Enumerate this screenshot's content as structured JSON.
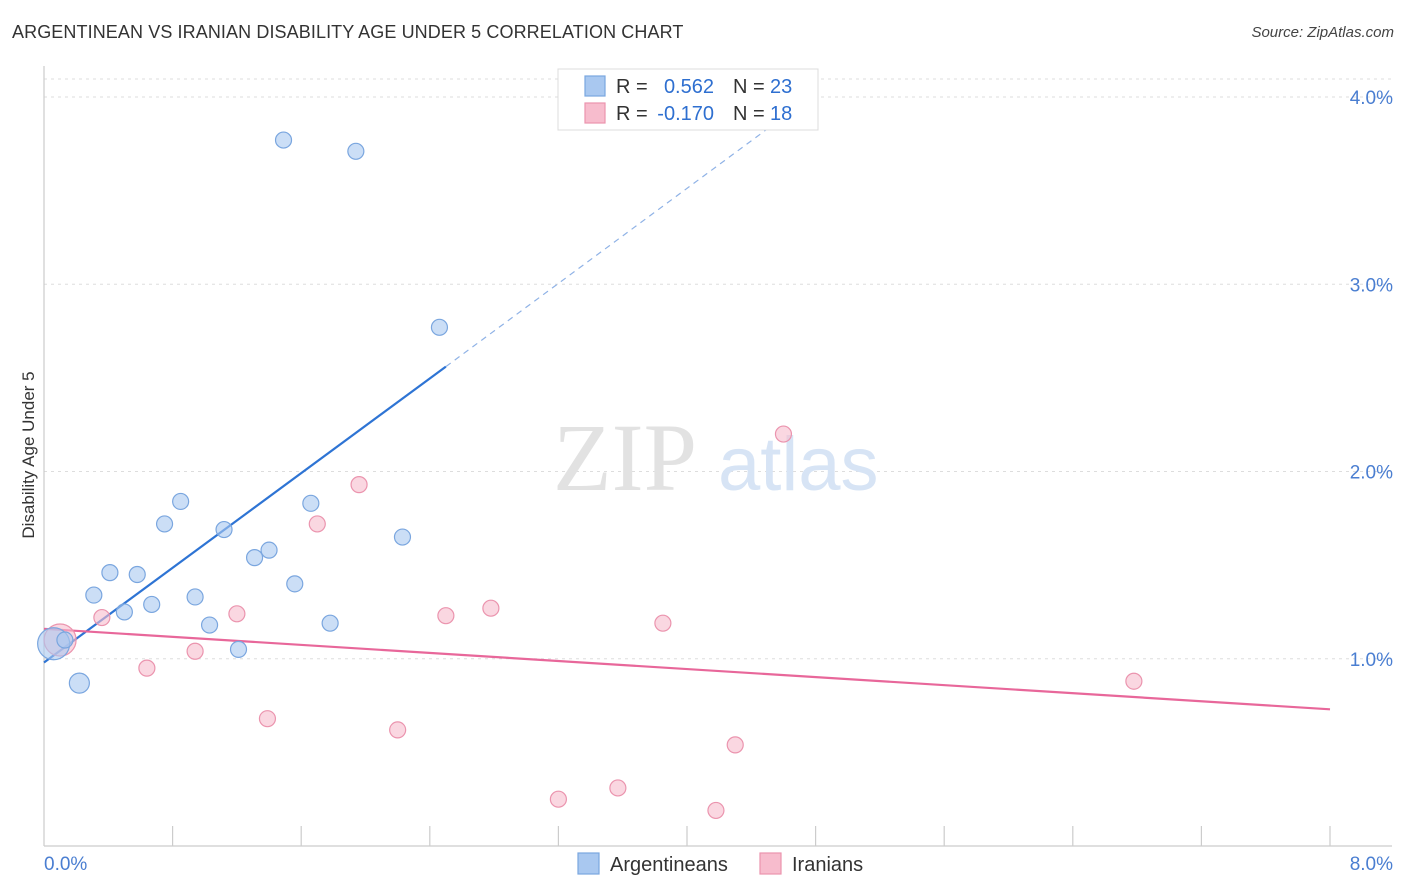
{
  "header": {
    "title": "ARGENTINEAN VS IRANIAN DISABILITY AGE UNDER 5 CORRELATION CHART",
    "source": "Source: ZipAtlas.com"
  },
  "watermark": {
    "part1": "ZIP",
    "part2": "atlas"
  },
  "colors": {
    "blue_fill": "#a9c8f0",
    "blue_stroke": "#7aa6df",
    "blue_line": "#2e74d4",
    "pink_fill": "#f7bccd",
    "pink_stroke": "#eb94ae",
    "pink_line": "#e8679a",
    "tick_text": "#4a7ed1",
    "grid": "#dddddd",
    "value_text": "#2e6fd0"
  },
  "chart_data": {
    "type": "scatter",
    "title": "ARGENTINEAN VS IRANIAN DISABILITY AGE UNDER 5 CORRELATION CHART",
    "xlabel": "",
    "ylabel": "Disability Age Under 5",
    "xlim": [
      0.0,
      8.0
    ],
    "ylim": [
      0.0,
      4.0
    ],
    "x_tick_labels": [
      "0.0%",
      "8.0%"
    ],
    "y_ticks": [
      {
        "value": 1.0,
        "label": "1.0%"
      },
      {
        "value": 2.0,
        "label": "2.0%"
      },
      {
        "value": 3.0,
        "label": "3.0%"
      },
      {
        "value": 4.0,
        "label": "4.0%"
      }
    ],
    "x_minor_ticks": [
      0.8,
      1.6,
      2.4,
      3.2,
      4.0,
      4.8,
      5.6,
      6.4,
      7.2,
      8.0
    ],
    "legend_top": [
      {
        "series": "Argentineans",
        "r_label": "R =",
        "r_value": "0.562",
        "n_label": "N =",
        "n_value": "23"
      },
      {
        "series": "Iranians",
        "r_label": "R =",
        "r_value": "-0.170",
        "n_label": "N =",
        "n_value": "18"
      }
    ],
    "legend_bottom": [
      "Argentineans",
      "Iranians"
    ],
    "series": [
      {
        "name": "Argentineans",
        "color": "#a9c8f0",
        "points": [
          {
            "x": 0.06,
            "y": 1.08,
            "size": "large"
          },
          {
            "x": 0.13,
            "y": 1.1,
            "size": "normal"
          },
          {
            "x": 0.22,
            "y": 0.87,
            "size": "medium"
          },
          {
            "x": 0.31,
            "y": 1.34,
            "size": "normal"
          },
          {
            "x": 0.41,
            "y": 1.46,
            "size": "normal"
          },
          {
            "x": 0.5,
            "y": 1.25,
            "size": "normal"
          },
          {
            "x": 0.58,
            "y": 1.45,
            "size": "normal"
          },
          {
            "x": 0.67,
            "y": 1.29,
            "size": "normal"
          },
          {
            "x": 0.75,
            "y": 1.72,
            "size": "normal"
          },
          {
            "x": 0.85,
            "y": 1.84,
            "size": "normal"
          },
          {
            "x": 0.94,
            "y": 1.33,
            "size": "normal"
          },
          {
            "x": 1.03,
            "y": 1.18,
            "size": "normal"
          },
          {
            "x": 1.12,
            "y": 1.69,
            "size": "normal"
          },
          {
            "x": 1.21,
            "y": 1.05,
            "size": "normal"
          },
          {
            "x": 1.31,
            "y": 1.54,
            "size": "normal"
          },
          {
            "x": 1.4,
            "y": 1.58,
            "size": "normal"
          },
          {
            "x": 1.49,
            "y": 3.77,
            "size": "normal"
          },
          {
            "x": 1.56,
            "y": 1.4,
            "size": "normal"
          },
          {
            "x": 1.66,
            "y": 1.83,
            "size": "normal"
          },
          {
            "x": 1.78,
            "y": 1.19,
            "size": "normal"
          },
          {
            "x": 1.94,
            "y": 3.71,
            "size": "normal"
          },
          {
            "x": 2.23,
            "y": 1.65,
            "size": "normal"
          },
          {
            "x": 2.46,
            "y": 2.77,
            "size": "normal"
          }
        ],
        "trend": {
          "x_start": 0.0,
          "y_start": 0.98,
          "x_solid_end": 2.5,
          "y_solid_end": 2.56,
          "x_dash_end": 4.8,
          "y_dash_end": 4.02
        }
      },
      {
        "name": "Iranians",
        "color": "#f7bccd",
        "points": [
          {
            "x": 0.1,
            "y": 1.1,
            "size": "large"
          },
          {
            "x": 0.36,
            "y": 1.22,
            "size": "normal"
          },
          {
            "x": 0.64,
            "y": 0.95,
            "size": "normal"
          },
          {
            "x": 0.94,
            "y": 1.04,
            "size": "normal"
          },
          {
            "x": 1.2,
            "y": 1.24,
            "size": "normal"
          },
          {
            "x": 1.39,
            "y": 0.68,
            "size": "normal"
          },
          {
            "x": 1.7,
            "y": 1.72,
            "size": "normal"
          },
          {
            "x": 1.96,
            "y": 1.93,
            "size": "normal"
          },
          {
            "x": 2.2,
            "y": 0.62,
            "size": "normal"
          },
          {
            "x": 2.5,
            "y": 1.23,
            "size": "normal"
          },
          {
            "x": 2.78,
            "y": 1.27,
            "size": "normal"
          },
          {
            "x": 3.2,
            "y": 0.25,
            "size": "normal"
          },
          {
            "x": 3.57,
            "y": 0.31,
            "size": "normal"
          },
          {
            "x": 3.85,
            "y": 1.19,
            "size": "normal"
          },
          {
            "x": 4.18,
            "y": 0.19,
            "size": "normal"
          },
          {
            "x": 4.3,
            "y": 0.54,
            "size": "normal"
          },
          {
            "x": 4.6,
            "y": 2.2,
            "size": "normal"
          },
          {
            "x": 6.78,
            "y": 0.88,
            "size": "normal"
          }
        ],
        "trend": {
          "x_start": 0.0,
          "y_start": 1.16,
          "x_end": 8.0,
          "y_end": 0.73
        }
      }
    ]
  }
}
